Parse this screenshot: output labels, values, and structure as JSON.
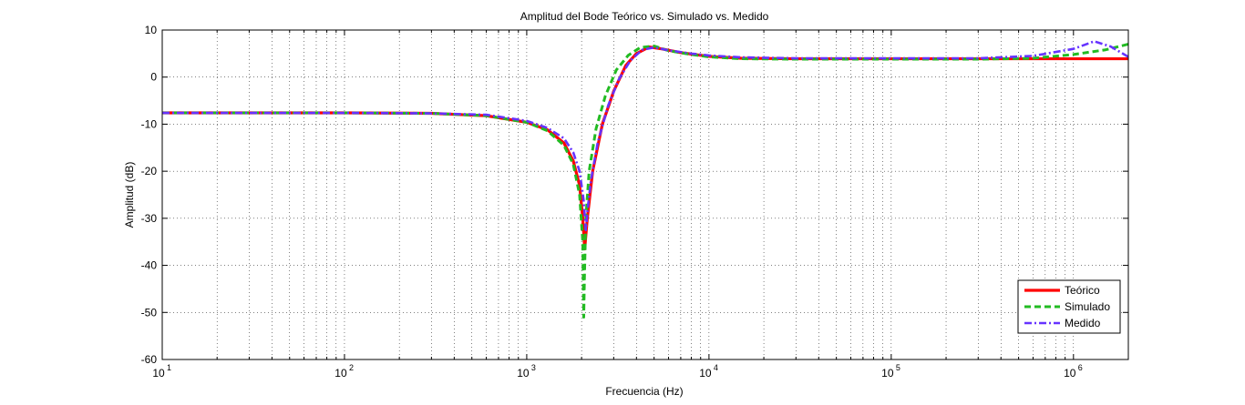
{
  "chart_data": {
    "type": "line",
    "title": "Amplitud del Bode Teórico vs. Simulado vs. Medido",
    "xlabel": "Frecuencia (Hz)",
    "ylabel": "Amplitud (dB)",
    "xscale": "log",
    "xlim": [
      10,
      2000000
    ],
    "ylim": [
      -60,
      10
    ],
    "grid": true,
    "legend_position": "bottom-right",
    "x_ticks": [
      {
        "value": 10,
        "base": "10",
        "exp": "1"
      },
      {
        "value": 100,
        "base": "10",
        "exp": "2"
      },
      {
        "value": 1000,
        "base": "10",
        "exp": "3"
      },
      {
        "value": 10000,
        "base": "10",
        "exp": "4"
      },
      {
        "value": 100000,
        "base": "10",
        "exp": "5"
      },
      {
        "value": 1000000,
        "base": "10",
        "exp": "6"
      }
    ],
    "y_ticks": [
      "10",
      "0",
      "-10",
      "-20",
      "-30",
      "-40",
      "-50",
      "-60"
    ],
    "y_tick_values": [
      10,
      0,
      -10,
      -20,
      -30,
      -40,
      -50,
      -60
    ],
    "series": [
      {
        "name": "Teórico",
        "color": "#ff0000",
        "style": "solid",
        "x": [
          10,
          100,
          300,
          600,
          1000,
          1300,
          1600,
          1800,
          1950,
          2030,
          2080,
          2150,
          2300,
          2600,
          3000,
          3500,
          4000,
          4700,
          5500,
          7000,
          10000,
          15000,
          30000,
          100000,
          300000,
          1000000,
          2000000
        ],
        "y": [
          -7.6,
          -7.6,
          -7.7,
          -8.2,
          -9.6,
          -11.2,
          -14.0,
          -17.8,
          -23.0,
          -30.0,
          -36.5,
          -30.0,
          -20.0,
          -10.0,
          -3.0,
          2.5,
          5.0,
          6.4,
          6.0,
          5.2,
          4.4,
          4.0,
          3.9,
          3.9,
          3.9,
          3.9,
          3.9
        ]
      },
      {
        "name": "Simulado",
        "color": "#22bb22",
        "style": "dashed",
        "x": [
          10,
          100,
          300,
          600,
          1000,
          1300,
          1600,
          1800,
          1950,
          2030,
          2055,
          2075,
          2110,
          2200,
          2400,
          2700,
          3100,
          3600,
          4200,
          5000,
          6000,
          8000,
          10000,
          15000,
          30000,
          100000,
          300000,
          600000,
          1000000,
          1500000,
          2000000
        ],
        "y": [
          -7.6,
          -7.6,
          -7.7,
          -8.2,
          -9.6,
          -11.4,
          -14.5,
          -18.5,
          -25.0,
          -35.0,
          -51.0,
          -42.0,
          -30.0,
          -20.0,
          -11.0,
          -4.0,
          1.5,
          4.6,
          6.3,
          6.6,
          5.6,
          4.8,
          4.3,
          3.9,
          3.8,
          3.8,
          3.8,
          4.0,
          4.8,
          5.8,
          7.0
        ]
      },
      {
        "name": "Medido",
        "color": "#6633ff",
        "style": "dashdot",
        "x": [
          10,
          100,
          300,
          600,
          1000,
          1300,
          1600,
          1800,
          1950,
          2050,
          2110,
          2160,
          2250,
          2450,
          2800,
          3200,
          3700,
          4300,
          5000,
          6000,
          8000,
          10000,
          15000,
          30000,
          100000,
          300000,
          600000,
          1000000,
          1300000,
          1600000,
          2000000
        ],
        "y": [
          -7.6,
          -7.6,
          -7.7,
          -8.0,
          -9.3,
          -10.8,
          -13.0,
          -16.0,
          -20.0,
          -26.0,
          -32.5,
          -28.0,
          -22.0,
          -14.0,
          -6.0,
          -0.5,
          3.5,
          5.8,
          6.3,
          5.7,
          5.0,
          4.6,
          4.2,
          4.0,
          4.0,
          4.0,
          4.5,
          6.0,
          7.6,
          6.5,
          4.3
        ]
      }
    ]
  }
}
